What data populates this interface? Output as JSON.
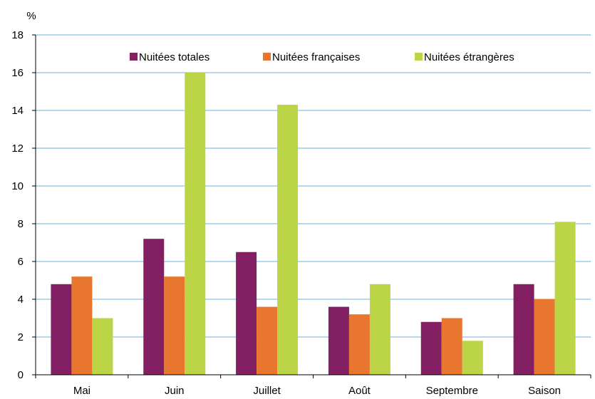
{
  "chart_data": {
    "type": "bar",
    "title": "",
    "xlabel": "",
    "ylabel": "%",
    "ylim": [
      0,
      18
    ],
    "yticks": [
      0,
      2,
      4,
      6,
      8,
      10,
      12,
      14,
      16,
      18
    ],
    "grid": true,
    "legend_position": "top",
    "categories": [
      "Mai",
      "Juin",
      "Juillet",
      "Août",
      "Septembre",
      "Saison"
    ],
    "series": [
      {
        "name": "Nuitées totales",
        "color": "#822063",
        "values": [
          4.8,
          7.2,
          6.5,
          3.6,
          2.8,
          4.8
        ]
      },
      {
        "name": "Nuitées françaises",
        "color": "#e8762f",
        "values": [
          5.2,
          5.2,
          3.6,
          3.2,
          3.0,
          4.0
        ]
      },
      {
        "name": "Nuitées étrangères",
        "color": "#bcd547",
        "values": [
          3.0,
          16.0,
          14.3,
          4.8,
          1.8,
          8.1
        ]
      }
    ]
  }
}
